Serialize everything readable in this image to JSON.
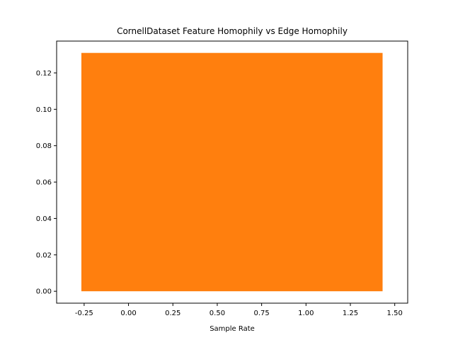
{
  "chart_data": {
    "type": "bar",
    "title": "CornellDataset Feature Homophily vs Edge Homophily",
    "xlabel": "Sample Rate",
    "ylabel": "",
    "bars": [
      {
        "x": 0.583,
        "width": 1.697,
        "value": 0.131,
        "color": "#ff7f0e"
      }
    ],
    "xlim": [
      -0.405,
      1.573
    ],
    "ylim": [
      -0.00655,
      0.1375
    ],
    "xticks": [
      -0.25,
      0.0,
      0.25,
      0.5,
      0.75,
      1.0,
      1.25,
      1.5
    ],
    "xtick_labels": [
      "-0.25",
      "0.00",
      "0.25",
      "0.50",
      "0.75",
      "1.00",
      "1.25",
      "1.50"
    ],
    "yticks": [
      0.0,
      0.02,
      0.04,
      0.06,
      0.08,
      0.1,
      0.12
    ],
    "ytick_labels": [
      "0.00",
      "0.02",
      "0.04",
      "0.06",
      "0.08",
      "0.10",
      "0.12"
    ],
    "grid": false,
    "legend": "none"
  }
}
